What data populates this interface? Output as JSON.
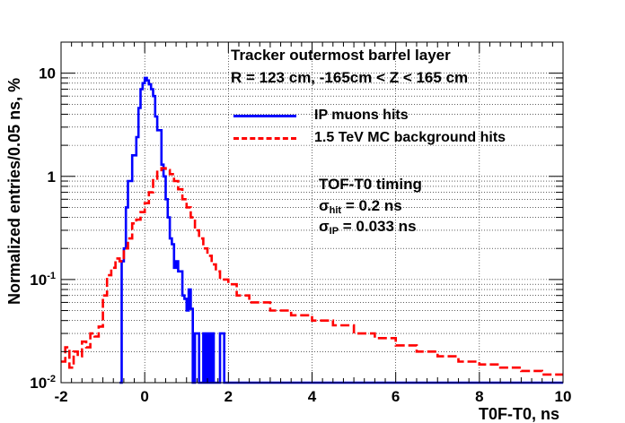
{
  "chart_data": {
    "type": "line",
    "xlabel": "T0F-T0, ns",
    "ylabel": "Normalized entries/0.05 ns, %",
    "xlim": [
      -2,
      10
    ],
    "ylim": [
      0.01,
      20
    ],
    "yscale": "log",
    "grid": true,
    "x_ticks": [
      "-2",
      "0",
      "2",
      "4",
      "6",
      "8",
      "10"
    ],
    "y_ticks": [
      {
        "value": 0.01,
        "base": "10",
        "exp": "-2"
      },
      {
        "value": 0.1,
        "base": "10",
        "exp": "-1"
      },
      {
        "value": 1,
        "base": "1",
        "exp": ""
      },
      {
        "value": 10,
        "base": "10",
        "exp": ""
      }
    ],
    "annotations": {
      "title_line1": "Tracker outermost barrel layer",
      "title_line2": "R = 123 cm, -165cm < Z < 165 cm",
      "timing_title": "TOF-T0 timing",
      "sigma_hit_sym": "σ",
      "sigma_hit_sub": "hit",
      "sigma_hit_val": " = 0.2 ns",
      "sigma_ip_sym": "σ",
      "sigma_ip_sub": "IP",
      "sigma_ip_val": " = 0.033 ns"
    },
    "legend": {
      "placement": "top-right"
    },
    "series": [
      {
        "name": "IP muons hits",
        "color": "#0000ff",
        "style": "solid",
        "points": [
          [
            -0.6,
            0.01
          ],
          [
            -0.55,
            0.15
          ],
          [
            -0.5,
            0.2
          ],
          [
            -0.45,
            0.5
          ],
          [
            -0.4,
            0.9
          ],
          [
            -0.35,
            0.9
          ],
          [
            -0.3,
            1.6
          ],
          [
            -0.25,
            1.6
          ],
          [
            -0.2,
            2.4
          ],
          [
            -0.15,
            4.6
          ],
          [
            -0.1,
            7.0
          ],
          [
            -0.05,
            8.0
          ],
          [
            0.0,
            9.0
          ],
          [
            0.05,
            8.5
          ],
          [
            0.1,
            7.8
          ],
          [
            0.15,
            7.0
          ],
          [
            0.2,
            6.0
          ],
          [
            0.25,
            3.8
          ],
          [
            0.3,
            2.8
          ],
          [
            0.35,
            2.8
          ],
          [
            0.4,
            1.3
          ],
          [
            0.45,
            1.0
          ],
          [
            0.5,
            0.6
          ],
          [
            0.55,
            0.4
          ],
          [
            0.6,
            0.25
          ],
          [
            0.65,
            0.22
          ],
          [
            0.7,
            0.13
          ],
          [
            0.75,
            0.15
          ],
          [
            0.8,
            0.12
          ],
          [
            0.85,
            0.12
          ],
          [
            0.9,
            0.07
          ],
          [
            0.95,
            0.065
          ],
          [
            1.0,
            0.05
          ],
          [
            1.05,
            0.08
          ],
          [
            1.1,
            0.052
          ],
          [
            1.15,
            0.01
          ],
          [
            1.2,
            0.03
          ],
          [
            1.25,
            0.03
          ],
          [
            1.3,
            0.01
          ],
          [
            1.4,
            0.03
          ],
          [
            1.45,
            0.01
          ],
          [
            1.5,
            0.03
          ],
          [
            1.55,
            0.01
          ],
          [
            1.6,
            0.03
          ],
          [
            1.65,
            0.01
          ],
          [
            1.8,
            0.03
          ],
          [
            1.85,
            0.03
          ],
          [
            1.9,
            0.01
          ],
          [
            10.0,
            0.01
          ]
        ]
      },
      {
        "name": "1.5 TeV MC background hits",
        "color": "#ff0000",
        "style": "dashed",
        "points": [
          [
            -2.0,
            0.016
          ],
          [
            -1.9,
            0.022
          ],
          [
            -1.8,
            0.014
          ],
          [
            -1.7,
            0.02
          ],
          [
            -1.6,
            0.018
          ],
          [
            -1.5,
            0.025
          ],
          [
            -1.4,
            0.022
          ],
          [
            -1.3,
            0.03
          ],
          [
            -1.2,
            0.028
          ],
          [
            -1.1,
            0.035
          ],
          [
            -1.0,
            0.07
          ],
          [
            -0.9,
            0.11
          ],
          [
            -0.8,
            0.13
          ],
          [
            -0.7,
            0.16
          ],
          [
            -0.6,
            0.15
          ],
          [
            -0.5,
            0.2
          ],
          [
            -0.4,
            0.25
          ],
          [
            -0.3,
            0.35
          ],
          [
            -0.2,
            0.38
          ],
          [
            -0.1,
            0.45
          ],
          [
            0.0,
            0.55
          ],
          [
            0.1,
            0.7
          ],
          [
            0.2,
            0.95
          ],
          [
            0.3,
            1.15
          ],
          [
            0.4,
            1.2
          ],
          [
            0.5,
            1.15
          ],
          [
            0.6,
            1.05
          ],
          [
            0.7,
            0.9
          ],
          [
            0.8,
            0.75
          ],
          [
            0.9,
            0.6
          ],
          [
            1.0,
            0.5
          ],
          [
            1.1,
            0.4
          ],
          [
            1.2,
            0.3
          ],
          [
            1.3,
            0.25
          ],
          [
            1.4,
            0.2
          ],
          [
            1.5,
            0.17
          ],
          [
            1.6,
            0.14
          ],
          [
            1.7,
            0.12
          ],
          [
            1.8,
            0.1
          ],
          [
            2.0,
            0.09
          ],
          [
            2.2,
            0.07
          ],
          [
            2.5,
            0.06
          ],
          [
            3.0,
            0.05
          ],
          [
            3.5,
            0.045
          ],
          [
            4.0,
            0.04
          ],
          [
            4.5,
            0.036
          ],
          [
            5.0,
            0.03
          ],
          [
            5.5,
            0.027
          ],
          [
            6.0,
            0.023
          ],
          [
            6.5,
            0.02
          ],
          [
            7.0,
            0.018
          ],
          [
            7.5,
            0.016
          ],
          [
            8.0,
            0.015
          ],
          [
            8.5,
            0.014
          ],
          [
            9.0,
            0.013
          ],
          [
            9.5,
            0.012
          ],
          [
            10.0,
            0.012
          ]
        ]
      }
    ]
  }
}
